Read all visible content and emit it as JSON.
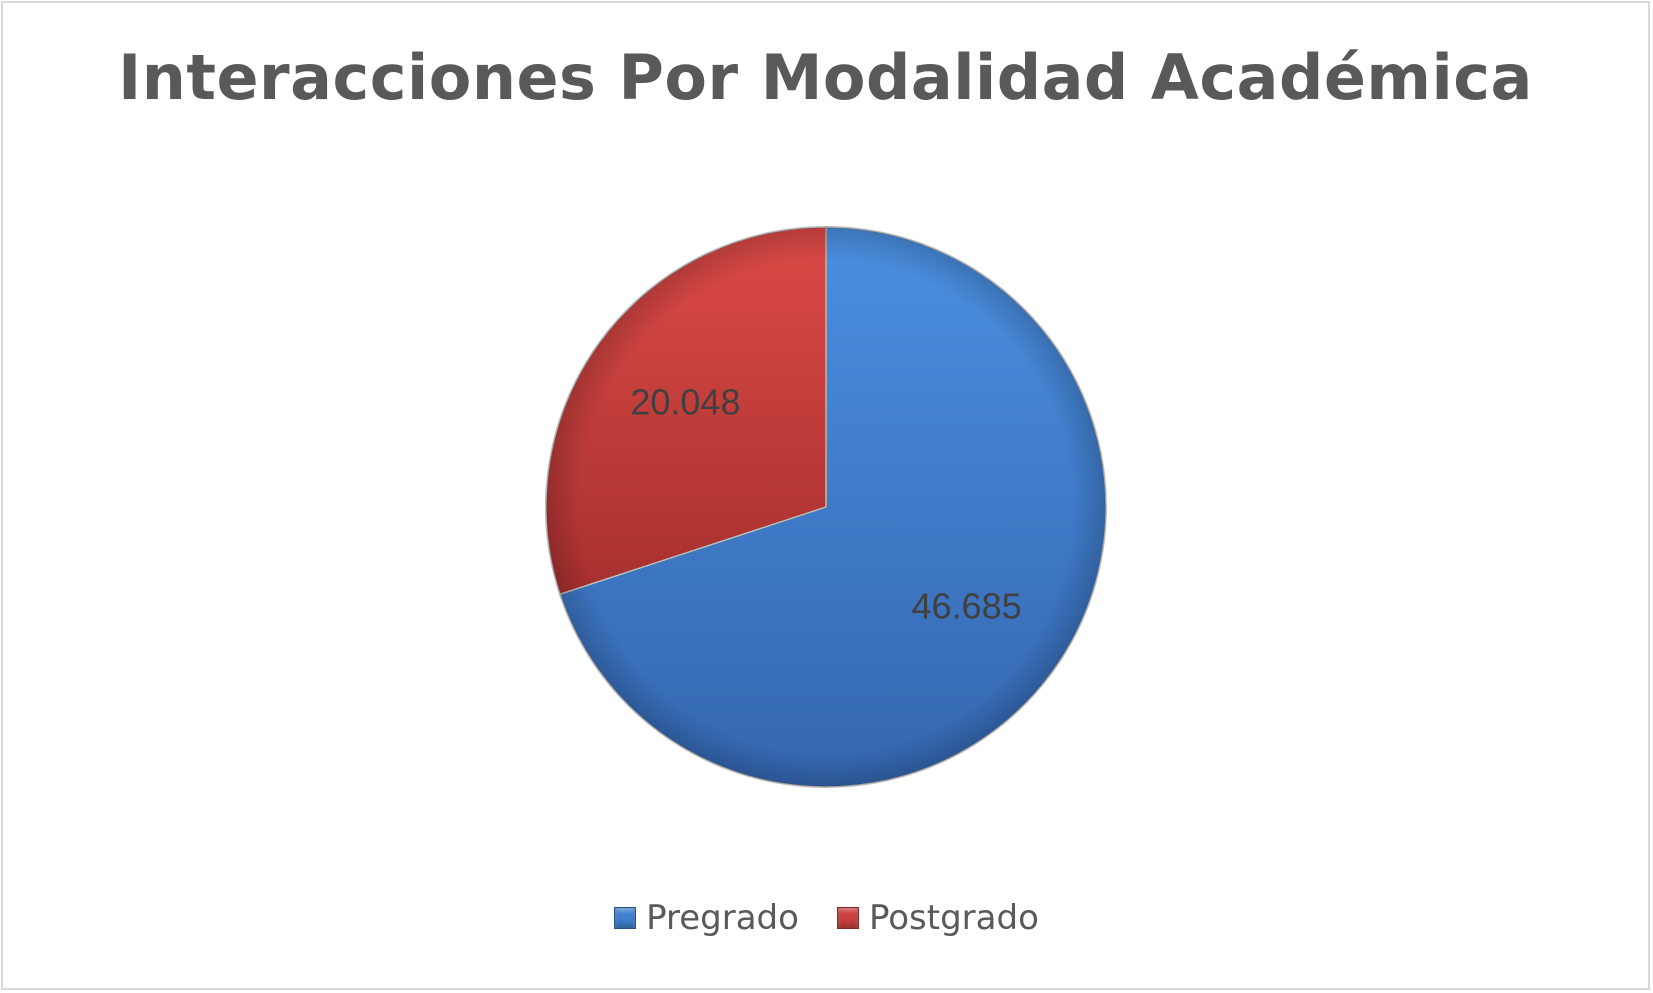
{
  "chart_data": {
    "type": "pie",
    "title": "Interacciones Por Modalidad Académica",
    "categories": [
      "Pregrado",
      "Postgrado"
    ],
    "values": [
      46685,
      20048
    ],
    "value_labels": [
      "46.685",
      "20.048"
    ],
    "colors": [
      "#3f7fd0",
      "#c9403d"
    ],
    "legend_position": "bottom",
    "start_angle_deg": 0,
    "direction": "clockwise"
  }
}
